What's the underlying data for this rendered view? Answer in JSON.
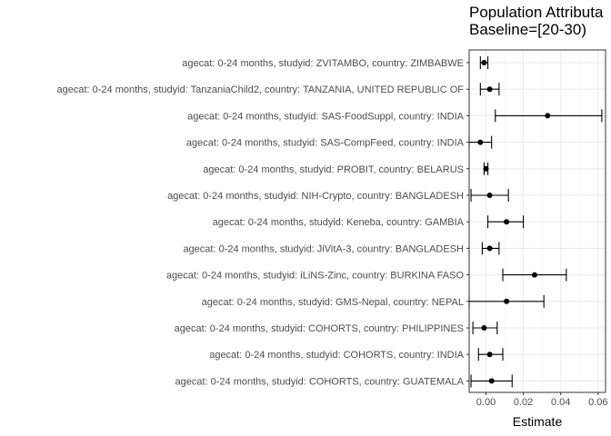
{
  "chart_data": {
    "type": "forest",
    "title_lines": [
      "Population Attributa",
      "Baseline=[20-30)"
    ],
    "xlabel": "Estimate",
    "ylabel": "",
    "xlim": [
      -0.009,
      0.064
    ],
    "xticks": [
      0.0,
      0.02,
      0.04,
      0.06
    ],
    "xtick_labels": [
      "0.00",
      "0.02",
      "0.04",
      "0.06"
    ],
    "grid": true,
    "rows": [
      {
        "label": "agecat: 0-24 months, studyid: ZVITAMBO, country: ZIMBABWE",
        "estimate": -0.001,
        "lower": -0.003,
        "upper": 0.001
      },
      {
        "label": "agecat: 0-24 months, studyid: TanzaniaChild2, country: TANZANIA, UNITED REPUBLIC OF",
        "estimate": 0.002,
        "lower": -0.003,
        "upper": 0.007
      },
      {
        "label": "agecat: 0-24 months, studyid: SAS-FoodSuppl, country: INDIA",
        "estimate": 0.033,
        "lower": 0.005,
        "upper": 0.062
      },
      {
        "label": "agecat: 0-24 months, studyid: SAS-CompFeed, country: INDIA",
        "estimate": -0.003,
        "lower": -0.009,
        "upper": 0.003
      },
      {
        "label": "agecat: 0-24 months, studyid: PROBIT, country: BELARUS",
        "estimate": 0.0,
        "lower": -0.001,
        "upper": 0.001
      },
      {
        "label": "agecat: 0-24 months, studyid: NIH-Crypto, country: BANGLADESH",
        "estimate": 0.002,
        "lower": -0.008,
        "upper": 0.012
      },
      {
        "label": "agecat: 0-24 months, studyid: Keneba, country: GAMBIA",
        "estimate": 0.011,
        "lower": 0.001,
        "upper": 0.02
      },
      {
        "label": "agecat: 0-24 months, studyid: JiVitA-3, country: BANGLADESH",
        "estimate": 0.002,
        "lower": -0.002,
        "upper": 0.007
      },
      {
        "label": "agecat: 0-24 months, studyid: iLiNS-Zinc, country: BURKINA FASO",
        "estimate": 0.026,
        "lower": 0.009,
        "upper": 0.043
      },
      {
        "label": "agecat: 0-24 months, studyid: GMS-Nepal, country: NEPAL",
        "estimate": 0.011,
        "lower": -0.009,
        "upper": 0.031
      },
      {
        "label": "agecat: 0-24 months, studyid: COHORTS, country: PHILIPPINES",
        "estimate": -0.001,
        "lower": -0.007,
        "upper": 0.006
      },
      {
        "label": "agecat: 0-24 months, studyid: COHORTS, country: INDIA",
        "estimate": 0.002,
        "lower": -0.004,
        "upper": 0.009
      },
      {
        "label": "agecat: 0-24 months, studyid: COHORTS, country: GUATEMALA",
        "estimate": 0.003,
        "lower": -0.008,
        "upper": 0.014
      }
    ]
  }
}
